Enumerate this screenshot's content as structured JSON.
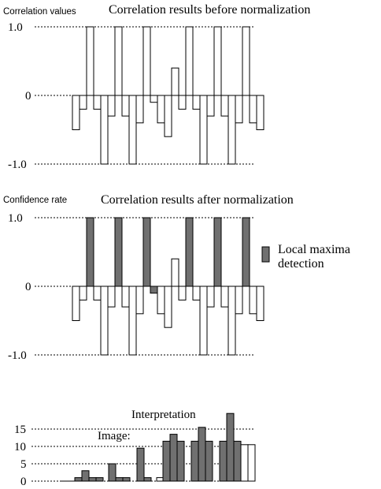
{
  "chart_data": [
    {
      "type": "bar",
      "title": "Correlation results before normalization",
      "ylabel": "Correlation values",
      "xlabel": "",
      "ylim": [
        -1.0,
        1.0
      ],
      "yticks": [
        "1.0",
        "0",
        "-1.0"
      ],
      "grid": true,
      "colors": {
        "bar_fill": "#ffffff",
        "bar_edge": "#000000"
      },
      "values": [
        -0.5,
        -0.2,
        1.0,
        -0.2,
        -1.0,
        -0.3,
        1.0,
        -0.3,
        -1.0,
        -0.4,
        1.0,
        -0.1,
        -0.4,
        -0.6,
        0.4,
        -0.2,
        1.0,
        -0.2,
        -1.0,
        -0.3,
        1.0,
        -0.3,
        -1.0,
        -0.4,
        1.0,
        -0.4,
        -0.5
      ]
    },
    {
      "type": "bar",
      "title": "Correlation results after normalization",
      "ylabel": "Confidence rate",
      "xlabel": "",
      "ylim": [
        -1.0,
        1.0
      ],
      "yticks": [
        "1.0",
        "0",
        "-1.0"
      ],
      "grid": true,
      "legend": {
        "label": "Local maxima detection",
        "line1": "Local maxima",
        "line2": "detection",
        "placement": "right",
        "color": "#707070"
      },
      "colors": {
        "bar_fill": "#ffffff",
        "highlight_fill": "#707070",
        "bar_edge": "#000000"
      },
      "values": [
        -0.5,
        -0.2,
        1.0,
        -0.2,
        -1.0,
        -0.3,
        1.0,
        -0.3,
        -1.0,
        -0.4,
        1.0,
        -0.1,
        -0.4,
        -0.6,
        0.4,
        -0.2,
        1.0,
        -0.2,
        -1.0,
        -0.3,
        1.0,
        -0.3,
        -1.0,
        -0.4,
        1.0,
        -0.4,
        -0.5
      ],
      "highlighted": [
        2,
        6,
        10,
        11,
        16,
        20,
        24
      ]
    },
    {
      "type": "bar",
      "title": "Interpretation",
      "annotation": "Image:",
      "xlabel": "",
      "ylabel": "",
      "ylim": [
        0,
        20
      ],
      "yticks": [
        "15",
        "10",
        "5",
        "0"
      ],
      "grid": true,
      "colors": {
        "bar_fill": "#707070",
        "empty_fill": "#ffffff",
        "bar_edge": "#000000"
      },
      "values": [
        1,
        3,
        1,
        1,
        5,
        1,
        1,
        9.5,
        1,
        1,
        11.5,
        13.5,
        11.5,
        11.5,
        15.5,
        11.5,
        11.5,
        19.5,
        11.5,
        10.5,
        10.5
      ],
      "filled": [
        true,
        true,
        true,
        true,
        true,
        true,
        true,
        true,
        true,
        false,
        true,
        true,
        true,
        true,
        true,
        true,
        true,
        true,
        true,
        false,
        false
      ]
    }
  ]
}
